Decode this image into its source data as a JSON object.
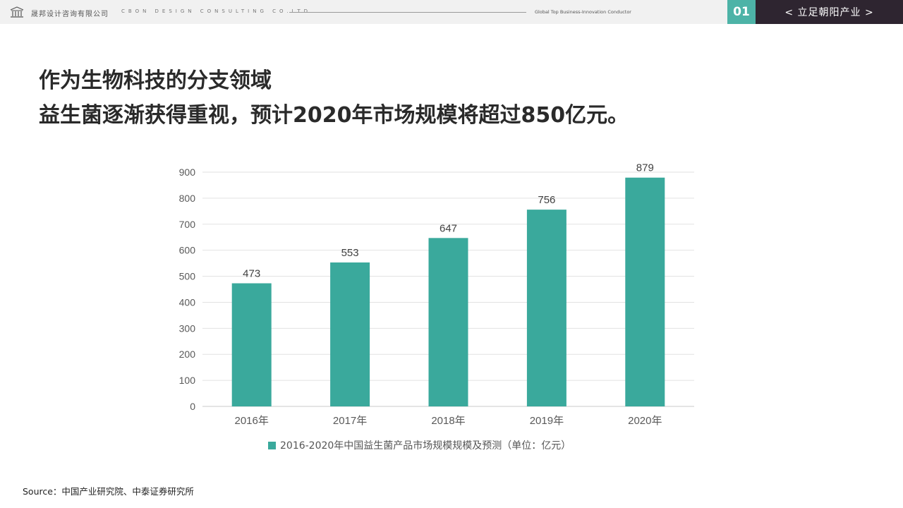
{
  "header": {
    "company_cn": "晟邦设计咨询有限公司",
    "company_en": "CBON DESIGN CONSULTING CO.LTD",
    "slogan": "Global Top Business-Innovation Conductor",
    "section_number": "01",
    "section_title": "< 立足朝阳产业 >"
  },
  "headline": {
    "line1": "作为生物科技的分支领域",
    "line2": "益生菌逐渐获得重视，预计2020年市场规模将超过850亿元。"
  },
  "colors": {
    "bar": "#3aa99c",
    "accent": "#4db3a7",
    "dark": "#2e2530"
  },
  "chart_data": {
    "type": "bar",
    "categories": [
      "2016年",
      "2017年",
      "2018年",
      "2019年",
      "2020年"
    ],
    "series": [
      {
        "name": "2016-2020年中国益生菌产品市场规模规模及预测（单位：亿元）",
        "values": [
          473,
          553,
          647,
          756,
          879
        ]
      }
    ],
    "ylim": [
      0,
      900
    ],
    "yticks": [
      0,
      100,
      200,
      300,
      400,
      500,
      600,
      700,
      800,
      900
    ],
    "grid": true,
    "data_labels": true,
    "legend_position": "bottom"
  },
  "source": "Source：中国产业研究院、中泰证券研究所"
}
